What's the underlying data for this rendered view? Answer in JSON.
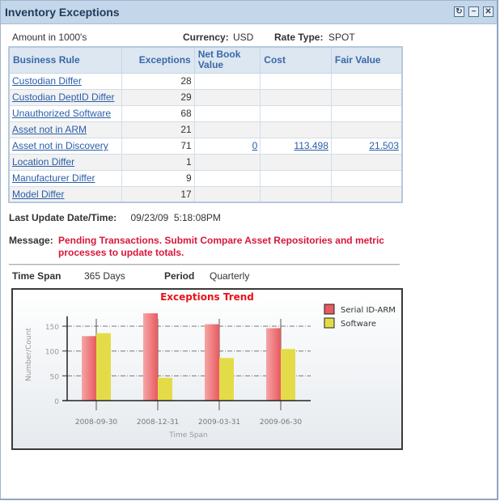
{
  "portlet": {
    "title": "Inventory Exceptions",
    "icons": [
      "refresh-icon",
      "minimize-icon",
      "close-icon"
    ],
    "icon_glyphs": {
      "refresh": "↻",
      "minimize": "−",
      "close": "✕"
    }
  },
  "meta": {
    "amount_label": "Amount in 1000's",
    "currency_label": "Currency:",
    "currency_value": "USD",
    "rate_type_label": "Rate Type:",
    "rate_type_value": "SPOT"
  },
  "table": {
    "columns": [
      "Business Rule",
      "Exceptions",
      "Net Book Value",
      "Cost",
      "Fair Value"
    ],
    "rows": [
      {
        "rule": "Custodian Differ",
        "exceptions": "28",
        "nbv": "",
        "cost": "",
        "fair": ""
      },
      {
        "rule": "Custodian DeptID Differ",
        "exceptions": "29",
        "nbv": "",
        "cost": "",
        "fair": ""
      },
      {
        "rule": "Unauthorized Software",
        "exceptions": "68",
        "nbv": "",
        "cost": "",
        "fair": ""
      },
      {
        "rule": "Asset not in ARM",
        "exceptions": "21",
        "nbv": "",
        "cost": "",
        "fair": ""
      },
      {
        "rule": "Asset not in Discovery",
        "exceptions": "71",
        "nbv": "0",
        "cost": "113.498",
        "fair": "21.503"
      },
      {
        "rule": "Location Differ",
        "exceptions": "1",
        "nbv": "",
        "cost": "",
        "fair": ""
      },
      {
        "rule": "Manufacturer Differ",
        "exceptions": "9",
        "nbv": "",
        "cost": "",
        "fair": ""
      },
      {
        "rule": "Model Differ",
        "exceptions": "17",
        "nbv": "",
        "cost": "",
        "fair": ""
      }
    ]
  },
  "update": {
    "label": "Last Update Date/Time:",
    "value": "09/23/09  5:18:08PM"
  },
  "message": {
    "label": "Message:",
    "text": "Pending Transactions. Submit Compare Asset Repositories and metric processes to update totals.",
    "color": "#d8173a"
  },
  "timespan": {
    "label": "Time Span",
    "value": "365 Days",
    "period_label": "Period",
    "period_value": "Quarterly"
  },
  "chart_data": {
    "type": "bar",
    "title": "Exceptions Trend",
    "xlabel": "Time Span",
    "ylabel": "Number/Count",
    "categories": [
      "2008-09-30",
      "2008-12-31",
      "2009-03-31",
      "2009-06-30"
    ],
    "series": [
      {
        "name": "Serial ID-ARM",
        "color": "#e85a5f",
        "values": [
          130,
          176,
          154,
          146
        ]
      },
      {
        "name": "Software",
        "color": "#e3dc48",
        "values": [
          136,
          46,
          86,
          104
        ]
      }
    ],
    "yticks": [
      0,
      50,
      100,
      150
    ],
    "ylim": [
      0,
      180
    ],
    "grid": true,
    "legend_position": "right"
  }
}
